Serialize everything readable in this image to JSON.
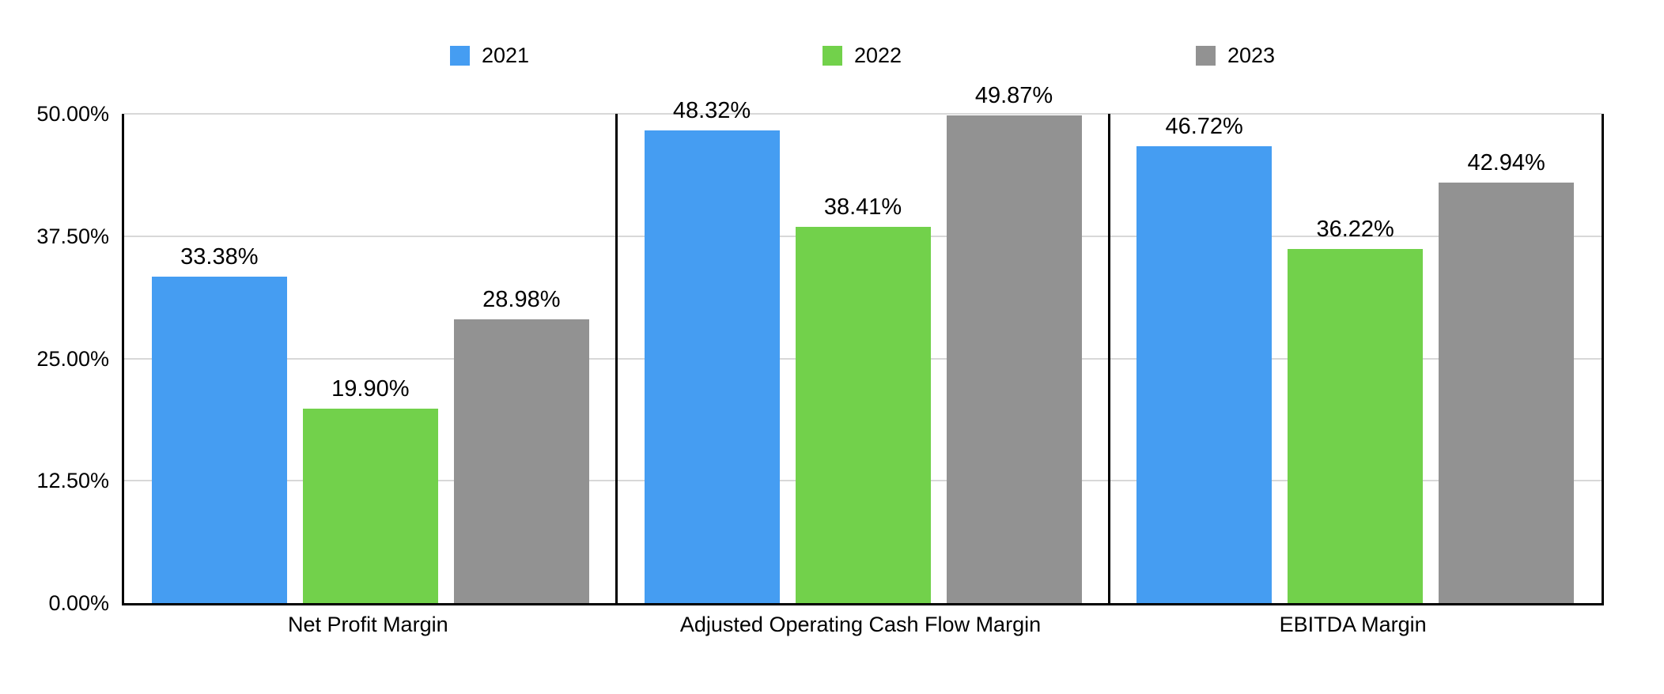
{
  "chart_data": {
    "type": "bar",
    "title": "",
    "categories": [
      "Net Profit Margin",
      "Adjusted Operating Cash Flow Margin",
      "EBITDA Margin"
    ],
    "series": [
      {
        "name": "2021",
        "color": "#459DF2",
        "values": [
          33.38,
          48.32,
          46.72
        ],
        "labels": [
          "33.38%",
          "48.32%",
          "46.72%"
        ]
      },
      {
        "name": "2022",
        "color": "#72D14B",
        "values": [
          19.9,
          38.41,
          36.22
        ],
        "labels": [
          "19.90%",
          "38.41%",
          "36.22%"
        ]
      },
      {
        "name": "2023",
        "color": "#929292",
        "values": [
          28.98,
          49.87,
          42.94
        ],
        "labels": [
          "28.98%",
          "49.87%",
          "42.94%"
        ]
      }
    ],
    "y_axis": {
      "min": 0,
      "max": 50,
      "tick_values": [
        0,
        12.5,
        25,
        37.5,
        50
      ],
      "tick_labels": [
        "0.00%",
        "12.50%",
        "25.00%",
        "37.50%",
        "50.00%"
      ]
    },
    "legend_position": "top",
    "grid": true,
    "panel_borders": true,
    "colors": {
      "grid": "#d8d8d8",
      "axis": "#000000",
      "text": "#000000",
      "background": "#ffffff"
    }
  }
}
